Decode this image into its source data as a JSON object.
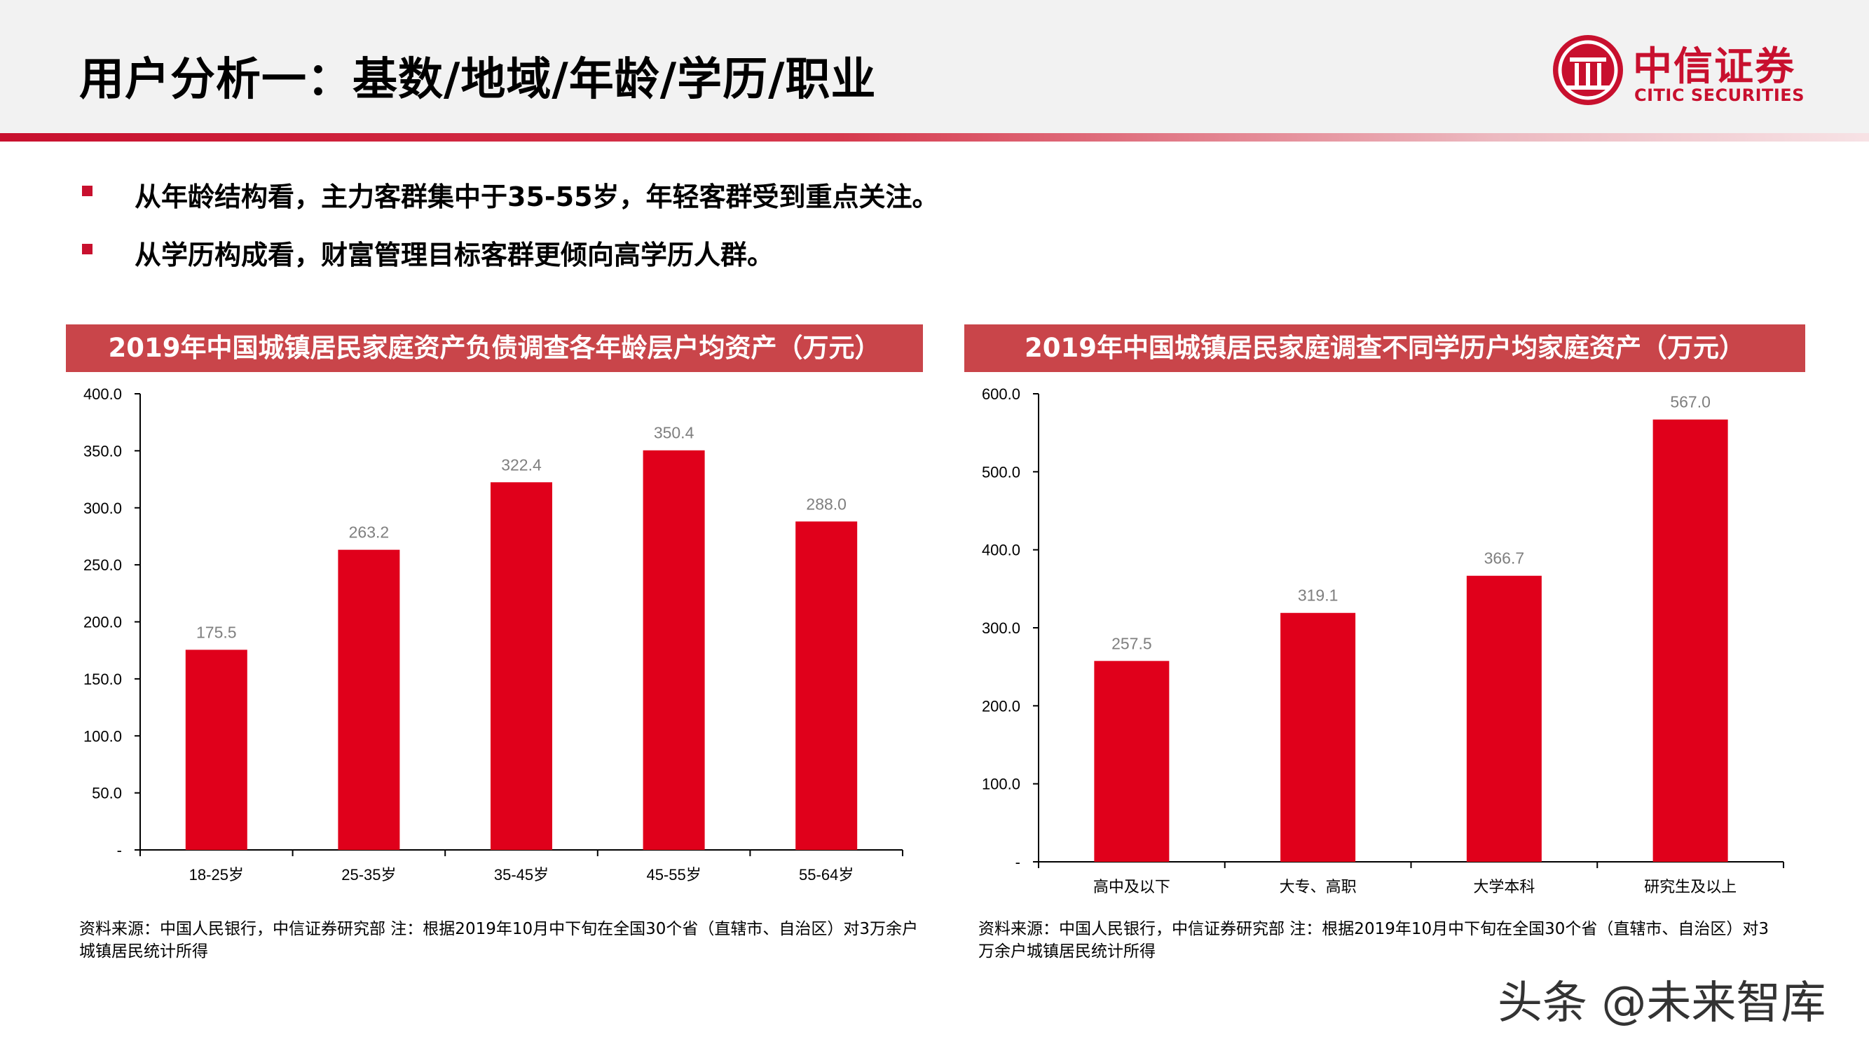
{
  "header": {
    "title": "用户分析一：基数/地域/年龄/学历/职业",
    "logo_cn": "中信证券",
    "logo_en": "CITIC SECURITIES",
    "accent_color": "#c8102e"
  },
  "bullets": [
    "从年龄结构看，主力客群集中于35-55岁，年轻客群受到重点关注。",
    "从学历构成看，财富管理目标客群更倾向高学历人群。"
  ],
  "panels": [
    {
      "title": "2019年中国城镇居民家庭资产负债调查各年龄层户均资产（万元）",
      "source": "资料来源：中国人民银行，中信证券研究部 注：根据2019年10月中下旬在全国30个省（直辖市、自治区）对3万余户城镇居民统计所得"
    },
    {
      "title": "2019年中国城镇居民家庭调查不同学历户均家庭资产（万元）",
      "source": "资料来源：中国人民银行，中信证券研究部 注：根据2019年10月中下旬在全国30个省（直辖市、自治区）对3万余户城镇居民统计所得"
    }
  ],
  "chart_data": [
    {
      "type": "bar",
      "categories": [
        "18-25岁",
        "25-35岁",
        "35-45岁",
        "45-55岁",
        "55-64岁"
      ],
      "values": [
        175.5,
        263.2,
        322.4,
        350.4,
        288.0
      ],
      "ylim": [
        0,
        400
      ],
      "yticks": [
        "-",
        "50.0",
        "100.0",
        "150.0",
        "200.0",
        "250.0",
        "300.0",
        "350.0",
        "400.0"
      ],
      "bar_color": "#e0001b",
      "label_color": "#7f7f7f"
    },
    {
      "type": "bar",
      "categories": [
        "高中及以下",
        "大专、高职",
        "大学本科",
        "研究生及以上"
      ],
      "values": [
        257.5,
        319.1,
        366.7,
        567.0
      ],
      "ylim": [
        0,
        600
      ],
      "yticks": [
        "-",
        "100.0",
        "200.0",
        "300.0",
        "400.0",
        "500.0",
        "600.0"
      ],
      "bar_color": "#e0001b",
      "label_color": "#7f7f7f"
    }
  ],
  "watermark": "头条 @未来智库"
}
